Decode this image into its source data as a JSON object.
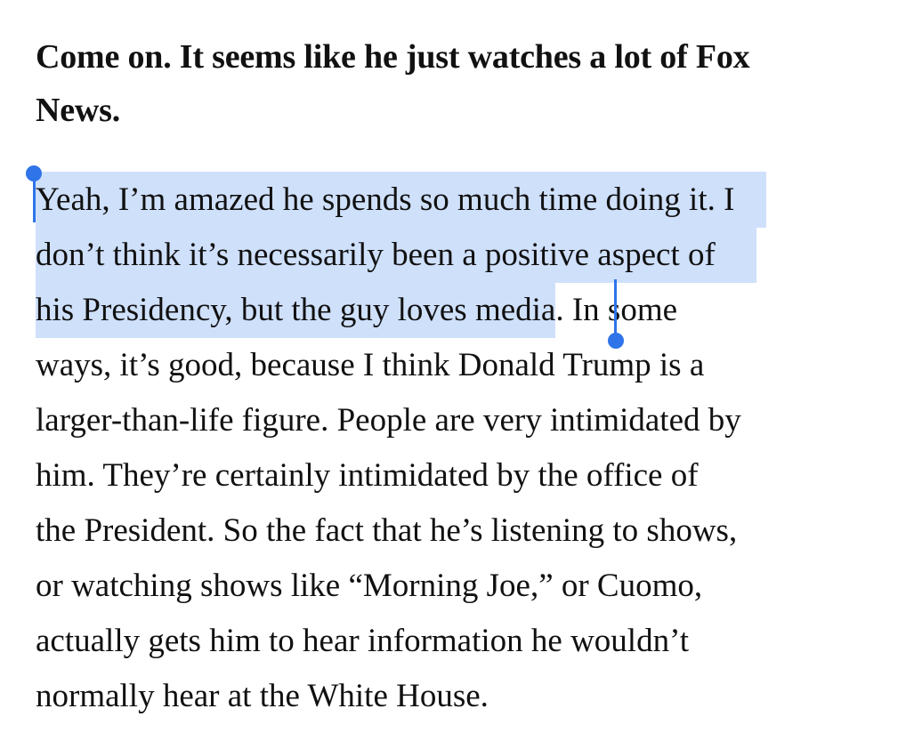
{
  "question": {
    "line1": "Come on. It seems like he just watches a lot of Fox",
    "line2": "News."
  },
  "answer": {
    "lines": [
      {
        "selected": "Yeah, I’m amazed he spends so much time doing it. I",
        "rest": ""
      },
      {
        "selected": "don’t think it’s necessarily been a positive aspect of",
        "rest": ""
      },
      {
        "selected": "his Presidency, but the guy loves media",
        "rest": ". In some"
      },
      {
        "selected": "",
        "rest": "ways, it’s good, because I think Donald Trump is a"
      },
      {
        "selected": "",
        "rest": "larger-than-life figure. People are very intimidated by"
      },
      {
        "selected": "",
        "rest": "him. They’re certainly intimidated by the office of"
      },
      {
        "selected": "",
        "rest": "the President. So the fact that he’s listening to shows,"
      },
      {
        "selected": "",
        "rest": "or watching shows like “Morning Joe,” or Cuomo,"
      },
      {
        "selected": "",
        "rest": "actually gets him to hear information he wouldn’t"
      },
      {
        "selected": "",
        "rest": "normally hear at the White House."
      }
    ]
  },
  "selection": {
    "color": "#cfe0fb",
    "handle_color": "#2f74e8"
  }
}
